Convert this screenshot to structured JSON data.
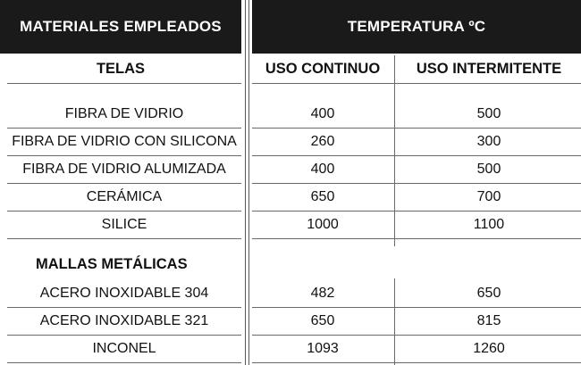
{
  "header": {
    "left": "MATERIALES EMPLEADOS",
    "right": "TEMPERATURA ºC"
  },
  "subheader": {
    "telas": "TELAS",
    "continuo": "USO CONTINUO",
    "intermitente": "USO INTERMITENTE"
  },
  "telas": [
    {
      "material": "FIBRA DE VIDRIO",
      "continuo": "400",
      "intermitente": "500"
    },
    {
      "material": "FIBRA DE VIDRIO CON SILICONA",
      "continuo": "260",
      "intermitente": "300"
    },
    {
      "material": "FIBRA DE VIDRIO ALUMIZADA",
      "continuo": "400",
      "intermitente": "500"
    },
    {
      "material": "CERÁMICA",
      "continuo": "650",
      "intermitente": "700"
    },
    {
      "material": "SILICE",
      "continuo": "1000",
      "intermitente": "1100"
    }
  ],
  "mallas_title": "MALLAS METÁLICAS",
  "mallas": [
    {
      "material": "ACERO INOXIDABLE 304",
      "continuo": "482",
      "intermitente": "650"
    },
    {
      "material": "ACERO INOXIDABLE 321",
      "continuo": "650",
      "intermitente": "815"
    },
    {
      "material": "INCONEL",
      "continuo": "1093",
      "intermitente": "1260"
    }
  ]
}
